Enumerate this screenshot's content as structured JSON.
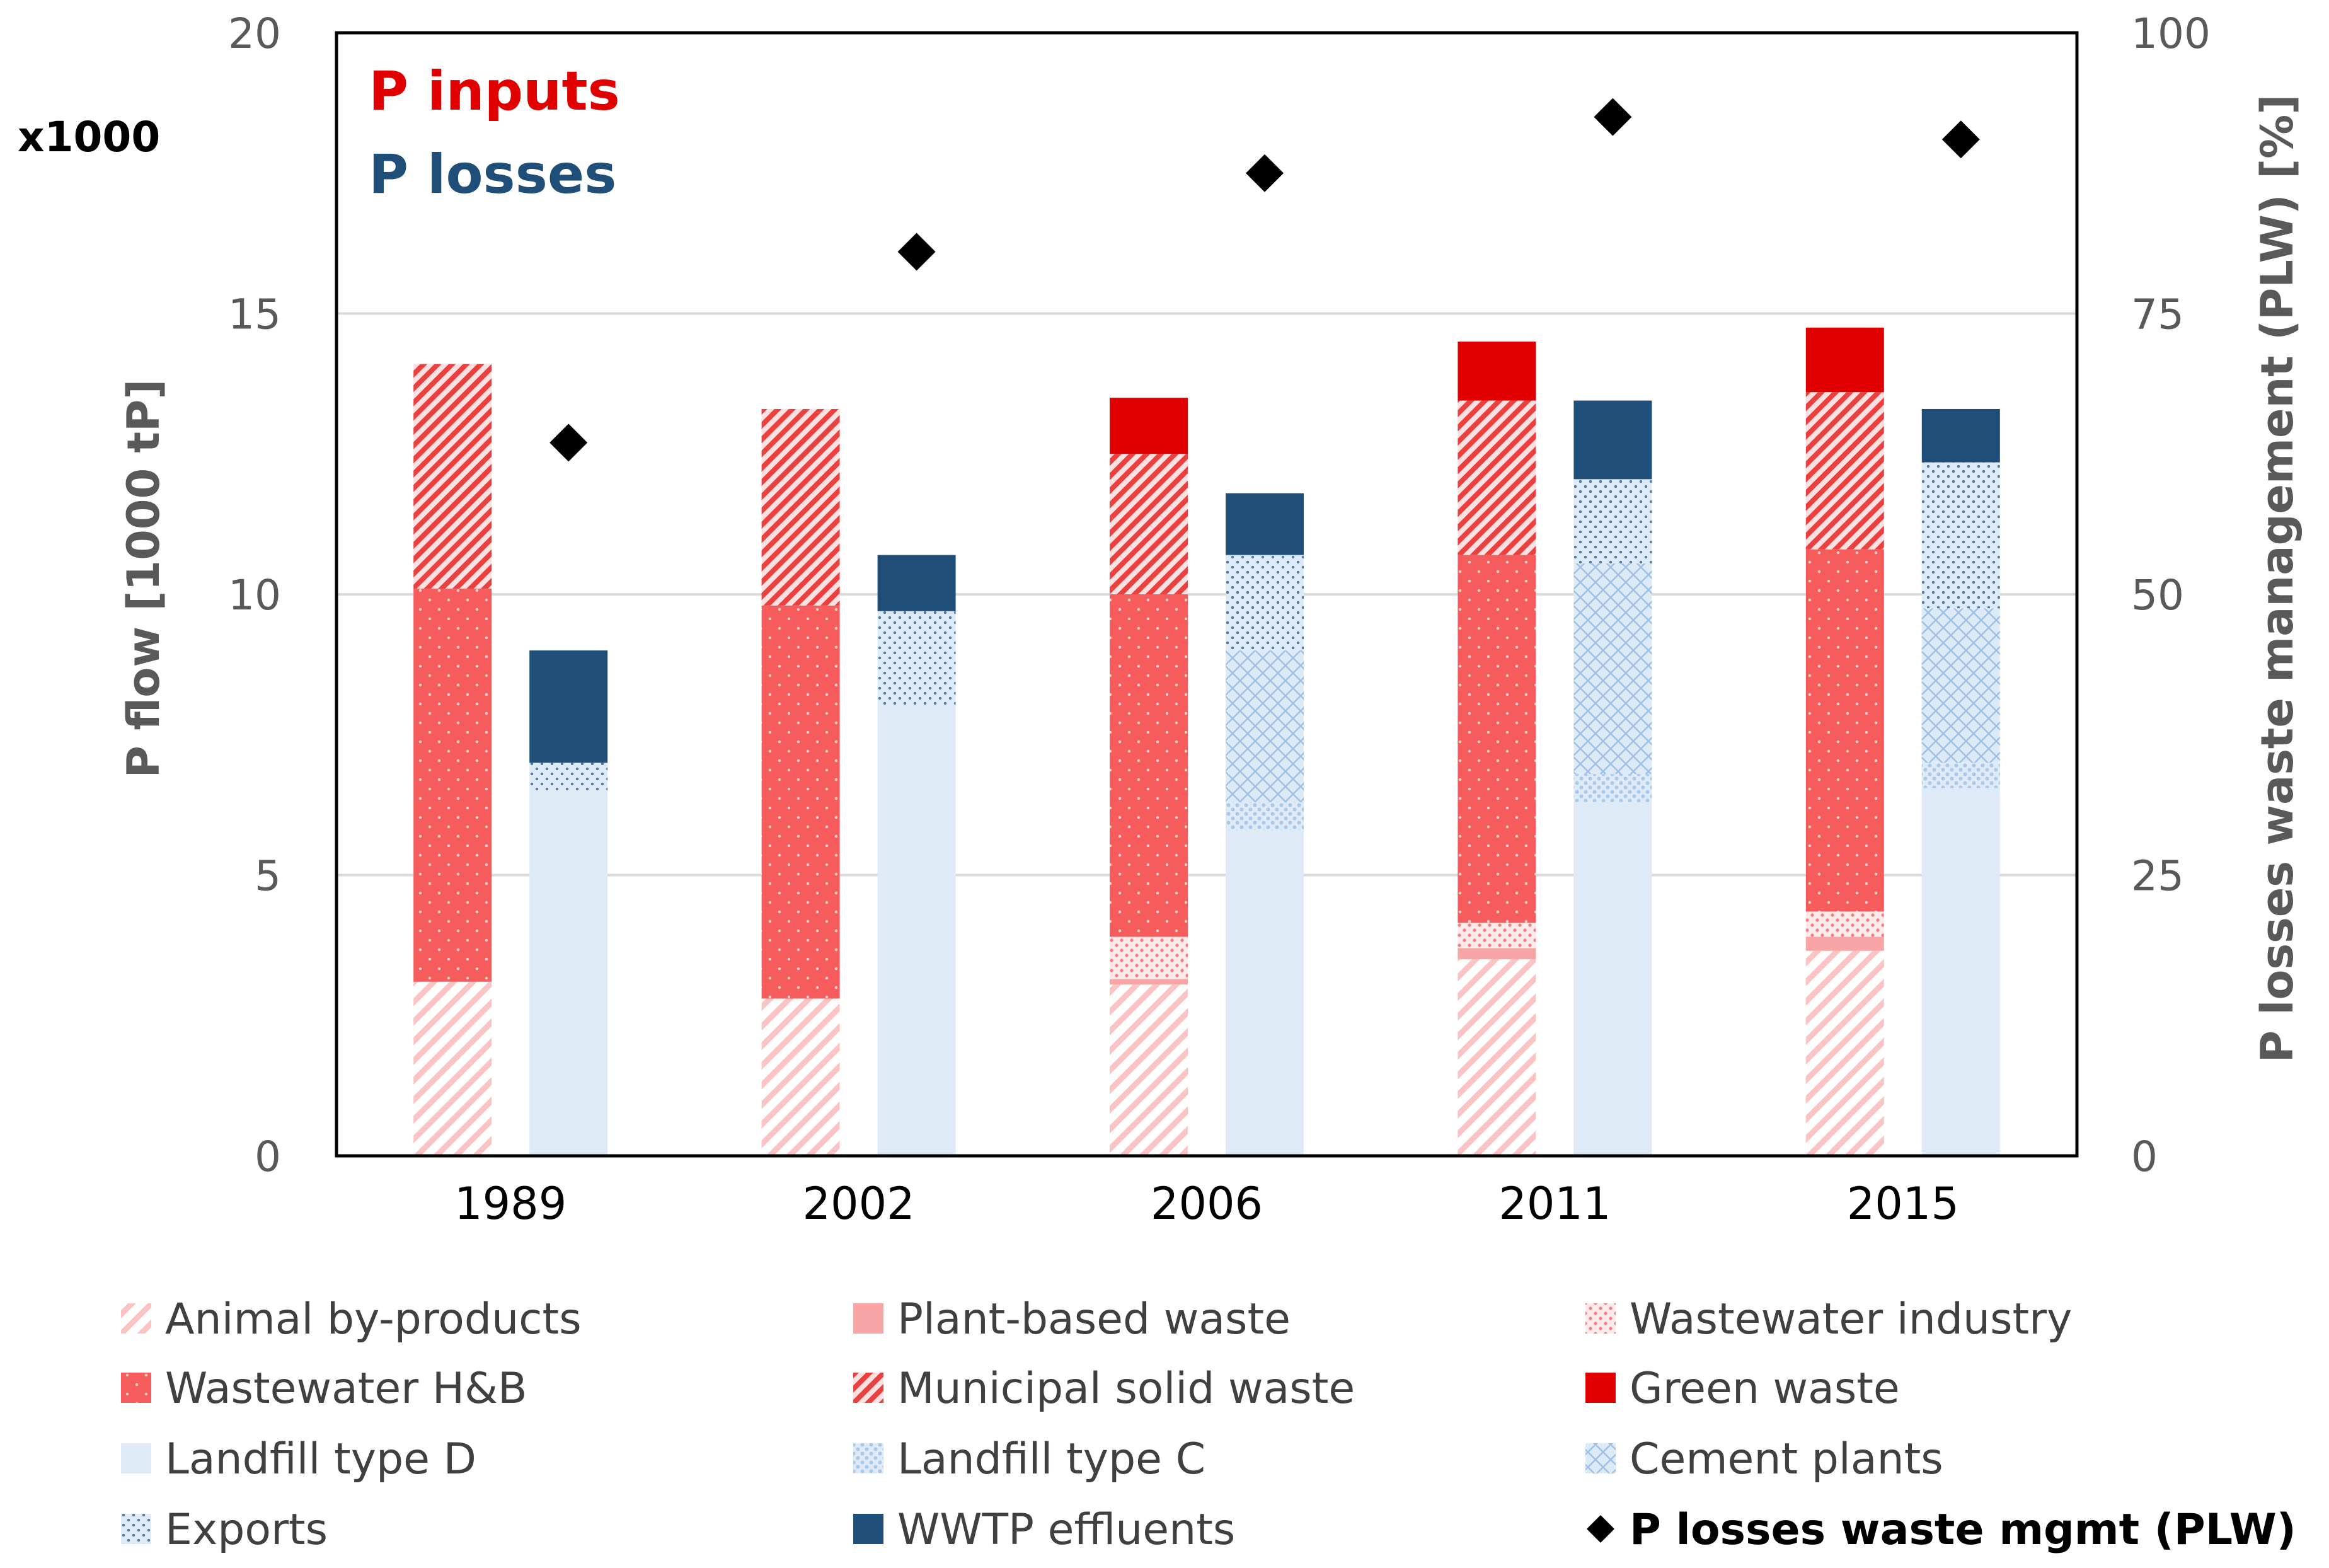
{
  "chart_data": {
    "type": "bar",
    "subtype": "stacked-grouped-bar-with-scatter",
    "multiplier_label": "x1000",
    "annotations": [
      {
        "text": "P inputs",
        "color": "#e00000"
      },
      {
        "text": "P losses",
        "color": "#1f4e79"
      }
    ],
    "ylabel": "P flow [1000 tP]",
    "y2label": "P losses waste management (PLW) [%]",
    "ylim": [
      0,
      20
    ],
    "y2lim": [
      0,
      100
    ],
    "yticks": [
      "0",
      "5",
      "10",
      "15",
      "20"
    ],
    "y2ticks": [
      "0",
      "25",
      "50",
      "75",
      "100"
    ],
    "gridlines": true,
    "legend_position": "bottom",
    "categories": [
      "1989",
      "2002",
      "2006",
      "2011",
      "2015"
    ],
    "groups": [
      {
        "name": "P inputs",
        "series": [
          {
            "name": "Animal by-products",
            "key": "animal",
            "values": [
              3.1,
              2.8,
              3.05,
              3.5,
              3.65
            ]
          },
          {
            "name": "Plant-based waste",
            "key": "plant",
            "values": [
              0,
              0,
              0.1,
              0.2,
              0.25
            ]
          },
          {
            "name": "Wastewater industry",
            "key": "wwind",
            "values": [
              0,
              0,
              0.75,
              0.45,
              0.45
            ]
          },
          {
            "name": "Wastewater H&B",
            "key": "wwhb",
            "values": [
              7.0,
              7.0,
              6.1,
              6.55,
              6.45
            ]
          },
          {
            "name": "Municipal solid waste",
            "key": "msw",
            "values": [
              4.0,
              3.5,
              2.5,
              2.75,
              2.8
            ]
          },
          {
            "name": "Green waste",
            "key": "green",
            "values": [
              0,
              0,
              1.0,
              1.05,
              1.15
            ]
          }
        ]
      },
      {
        "name": "P losses",
        "series": [
          {
            "name": "Landfill type D",
            "key": "lfd",
            "values": [
              6.5,
              8.0,
              5.8,
              6.3,
              6.55
            ]
          },
          {
            "name": "Landfill type C",
            "key": "lfc",
            "values": [
              0,
              0,
              0.5,
              0.5,
              0.45
            ]
          },
          {
            "name": "Cement plants",
            "key": "cement",
            "values": [
              0,
              0,
              2.7,
              3.75,
              2.75
            ]
          },
          {
            "name": "Exports",
            "key": "exports",
            "values": [
              0.5,
              1.7,
              1.7,
              1.5,
              2.6
            ]
          },
          {
            "name": "WWTP effluents",
            "key": "wwtp",
            "values": [
              2.0,
              1.0,
              1.1,
              1.4,
              0.95
            ]
          }
        ]
      }
    ],
    "scatter": {
      "name": "P losses waste mgmt (PLW)",
      "axis": "y2",
      "values": [
        63.5,
        80.5,
        87.5,
        92.5,
        90.5
      ]
    },
    "legend": [
      {
        "label": "Animal by-products",
        "key": "animal"
      },
      {
        "label": "Plant-based waste",
        "key": "plant"
      },
      {
        "label": "Wastewater industry",
        "key": "wwind"
      },
      {
        "label": "Wastewater H&B",
        "key": "wwhb"
      },
      {
        "label": "Municipal solid waste",
        "key": "msw"
      },
      {
        "label": "Green waste",
        "key": "green"
      },
      {
        "label": "Landfill type D",
        "key": "lfd"
      },
      {
        "label": "Landfill type C",
        "key": "lfc"
      },
      {
        "label": "Cement plants",
        "key": "cement"
      },
      {
        "label": "Exports",
        "key": "exports"
      },
      {
        "label": "WWTP effluents",
        "key": "wwtp"
      },
      {
        "label": "P losses waste mgmt (PLW)",
        "key": "plw"
      }
    ]
  }
}
